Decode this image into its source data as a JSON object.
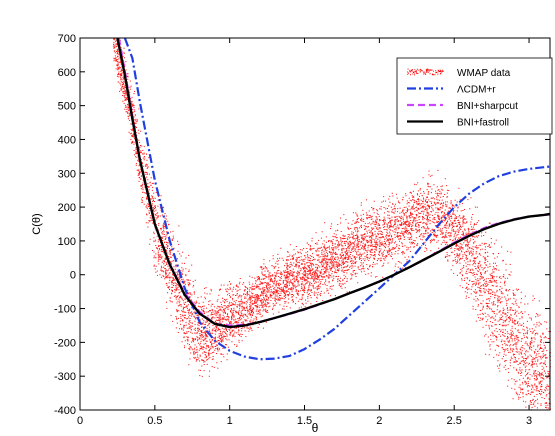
{
  "chart_data": {
    "type": "line",
    "xlabel": "θ",
    "ylabel": "C(θ)",
    "xlim": [
      0,
      3.14
    ],
    "ylim": [
      -400,
      700
    ],
    "xticks": [
      "0",
      "0.5",
      "1",
      "1.5",
      "2",
      "2.5",
      "3"
    ],
    "xtick_values": [
      0,
      0.5,
      1,
      1.5,
      2,
      2.5,
      3
    ],
    "yticks": [
      "-400",
      "-300",
      "-200",
      "-100",
      "0",
      "100",
      "200",
      "300",
      "400",
      "500",
      "600",
      "700"
    ],
    "ytick_values": [
      -400,
      -300,
      -200,
      -100,
      0,
      100,
      200,
      300,
      400,
      500,
      600,
      700
    ],
    "legend_position": "top-right",
    "legend": [
      {
        "name": "WMAP data",
        "color": "#ff0000",
        "style": "dots"
      },
      {
        "name": "ΛCDM+r",
        "color": "#1f3fe0",
        "style": "dash-dot"
      },
      {
        "name": "BNI+sharpcut",
        "color": "#cc44ff",
        "style": "dashed"
      },
      {
        "name": "BNI+fastroll",
        "color": "#000000",
        "style": "solid"
      }
    ],
    "series": [
      {
        "name": "WMAP data",
        "x": [
          0.22,
          0.3,
          0.4,
          0.5,
          0.6,
          0.7,
          0.8,
          0.9,
          1.0,
          1.1,
          1.2,
          1.3,
          1.4,
          1.5,
          1.6,
          1.7,
          1.8,
          1.9,
          2.0,
          2.1,
          2.2,
          2.3,
          2.4,
          2.5,
          2.6,
          2.7,
          2.8,
          2.9,
          3.0,
          3.14
        ],
        "center": [
          700,
          560,
          330,
          140,
          20,
          -100,
          -180,
          -160,
          -130,
          -100,
          -60,
          -30,
          -10,
          0,
          20,
          40,
          70,
          100,
          110,
          130,
          160,
          180,
          170,
          140,
          60,
          -20,
          -100,
          -180,
          -260,
          -320
        ],
        "spread": [
          50,
          70,
          90,
          100,
          110,
          120,
          110,
          90,
          80,
          70,
          65,
          65,
          65,
          70,
          75,
          80,
          80,
          85,
          85,
          85,
          85,
          85,
          90,
          100,
          120,
          140,
          150,
          150,
          150,
          150
        ],
        "color": "#ff0000"
      },
      {
        "name": "ΛCDM+r",
        "x": [
          0.3,
          0.35,
          0.4,
          0.5,
          0.6,
          0.7,
          0.8,
          0.9,
          1.0,
          1.1,
          1.2,
          1.3,
          1.4,
          1.5,
          1.6,
          1.7,
          1.8,
          1.9,
          2.0,
          2.1,
          2.2,
          2.3,
          2.4,
          2.5,
          2.6,
          2.7,
          2.8,
          2.9,
          3.0,
          3.1,
          3.14
        ],
        "y": [
          700,
          640,
          510,
          280,
          100,
          -40,
          -140,
          -195,
          -225,
          -242,
          -250,
          -248,
          -240,
          -220,
          -192,
          -160,
          -120,
          -80,
          -40,
          0,
          40,
          95,
          150,
          200,
          240,
          270,
          292,
          305,
          313,
          318,
          320
        ],
        "color": "#1f3fe0"
      },
      {
        "name": "BNI+sharpcut",
        "x": [
          0.26,
          0.3,
          0.35,
          0.4,
          0.5,
          0.6,
          0.7,
          0.8,
          0.9,
          1.0,
          1.1,
          1.2,
          1.3,
          1.4,
          1.5,
          1.6,
          1.7,
          1.8,
          1.9,
          2.0,
          2.1,
          2.2,
          2.3,
          2.4,
          2.5,
          2.6,
          2.7,
          2.8,
          2.9,
          3.0,
          3.1,
          3.14
        ],
        "y": [
          700,
          600,
          470,
          340,
          150,
          30,
          -55,
          -110,
          -145,
          -150,
          -148,
          -140,
          -128,
          -116,
          -103,
          -88,
          -72,
          -55,
          -38,
          -20,
          0,
          22,
          45,
          70,
          95,
          118,
          138,
          153,
          164,
          172,
          177,
          178
        ],
        "color": "#cc44ff"
      },
      {
        "name": "BNI+fastroll",
        "x": [
          0.25,
          0.3,
          0.35,
          0.4,
          0.5,
          0.6,
          0.7,
          0.8,
          0.9,
          1.0,
          1.1,
          1.2,
          1.3,
          1.4,
          1.5,
          1.6,
          1.7,
          1.8,
          1.9,
          2.0,
          2.1,
          2.2,
          2.3,
          2.4,
          2.5,
          2.6,
          2.7,
          2.8,
          2.9,
          3.0,
          3.1,
          3.14
        ],
        "y": [
          700,
          590,
          460,
          340,
          150,
          30,
          -60,
          -115,
          -145,
          -155,
          -150,
          -140,
          -128,
          -115,
          -102,
          -87,
          -72,
          -55,
          -38,
          -20,
          0,
          22,
          45,
          68,
          92,
          115,
          135,
          151,
          163,
          172,
          177,
          180
        ],
        "color": "#000000"
      }
    ]
  }
}
